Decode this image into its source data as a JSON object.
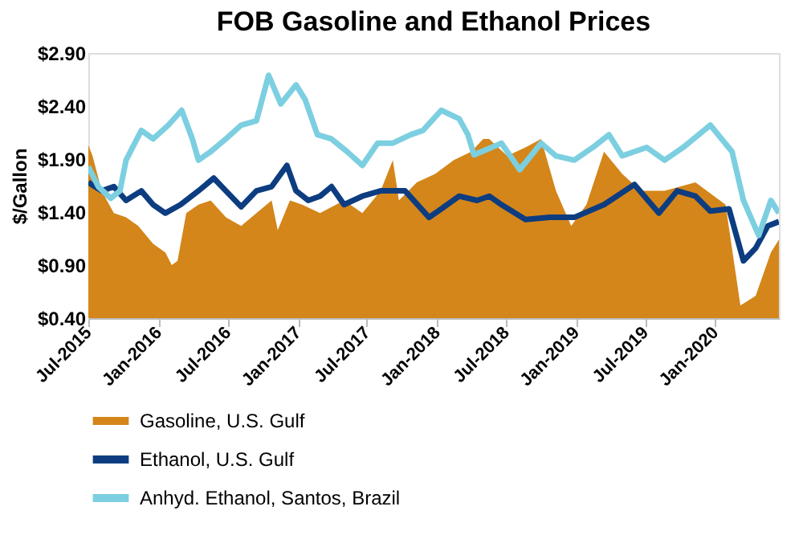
{
  "chart_data": {
    "type": "line",
    "title": "FOB Gasoline and Ethanol Prices",
    "ylabel": "$/Gallon",
    "ylim": [
      0.4,
      2.9
    ],
    "yticks": [
      {
        "value": 0.4,
        "label": "$0.40"
      },
      {
        "value": 0.9,
        "label": "$0.90"
      },
      {
        "value": 1.4,
        "label": "$1.40"
      },
      {
        "value": 1.9,
        "label": "$1.90"
      },
      {
        "value": 2.4,
        "label": "$2.40"
      },
      {
        "value": 2.9,
        "label": "$2.90"
      }
    ],
    "xlim": [
      "2015-07-01",
      "2020-06-16"
    ],
    "xticks": [
      {
        "value": "2015-07-01",
        "label": "Jul-2015"
      },
      {
        "value": "2016-01-01",
        "label": "Jan-2016"
      },
      {
        "value": "2016-07-01",
        "label": "Jul-2016"
      },
      {
        "value": "2017-01-01",
        "label": "Jan-2017"
      },
      {
        "value": "2017-07-01",
        "label": "Jul-2017"
      },
      {
        "value": "2018-01-01",
        "label": "Jan-2018"
      },
      {
        "value": "2018-07-01",
        "label": "Jul-2018"
      },
      {
        "value": "2019-01-01",
        "label": "Jan-2019"
      },
      {
        "value": "2019-07-01",
        "label": "Jul-2019"
      },
      {
        "value": "2020-01-01",
        "label": "Jan-2020"
      }
    ],
    "grid": false,
    "legend": "bottom",
    "marker": "none",
    "line_style": "solid",
    "series": [
      {
        "name": "Gasoline, U.S. Gulf",
        "type": "area",
        "color": "#d4861a",
        "x": [
          "2015-07-01",
          "2015-07-12",
          "2015-08-05",
          "2015-09-06",
          "2015-10-08",
          "2015-11-09",
          "2015-12-18",
          "2016-01-19",
          "2016-02-05",
          "2016-02-20",
          "2016-03-14",
          "2016-04-15",
          "2016-05-17",
          "2016-06-26",
          "2016-08-05",
          "2016-09-14",
          "2016-10-24",
          "2016-11-09",
          "2016-12-11",
          "2017-01-12",
          "2017-02-28",
          "2017-05-02",
          "2017-06-19",
          "2017-08-06",
          "2017-09-07",
          "2017-09-23",
          "2017-11-09",
          "2017-12-27",
          "2018-02-14",
          "2018-04-01",
          "2018-05-02",
          "2018-05-18",
          "2018-07-04",
          "2018-08-21",
          "2018-10-01",
          "2018-11-09",
          "2018-12-19",
          "2019-01-28",
          "2019-03-15",
          "2019-05-02",
          "2019-06-19",
          "2019-08-21",
          "2019-11-10",
          "2020-01-28",
          "2020-03-07",
          "2020-04-16",
          "2020-05-26",
          "2020-06-16"
        ],
        "values": [
          2.03,
          1.93,
          1.6,
          1.39,
          1.35,
          1.27,
          1.1,
          1.02,
          0.9,
          0.94,
          1.39,
          1.47,
          1.51,
          1.35,
          1.27,
          1.39,
          1.51,
          1.23,
          1.51,
          1.47,
          1.39,
          1.51,
          1.39,
          1.6,
          1.89,
          1.51,
          1.68,
          1.76,
          1.89,
          1.97,
          2.09,
          2.09,
          1.93,
          2.01,
          2.09,
          1.6,
          1.27,
          1.47,
          1.97,
          1.76,
          1.6,
          1.6,
          1.68,
          1.47,
          0.52,
          0.61,
          1.02,
          1.14
        ]
      },
      {
        "name": "Ethanol, U.S. Gulf",
        "color": "#0d3d80",
        "x": [
          "2015-07-01",
          "2015-08-05",
          "2015-09-06",
          "2015-10-08",
          "2015-11-17",
          "2015-12-18",
          "2016-01-19",
          "2016-02-28",
          "2016-04-15",
          "2016-05-25",
          "2016-06-26",
          "2016-08-05",
          "2016-09-14",
          "2016-10-24",
          "2016-12-03",
          "2016-12-27",
          "2017-01-28",
          "2017-02-28",
          "2017-03-30",
          "2017-05-02",
          "2017-06-19",
          "2017-08-06",
          "2017-10-09",
          "2017-12-11",
          "2018-01-12",
          "2018-02-28",
          "2018-04-16",
          "2018-05-18",
          "2018-06-19",
          "2018-08-21",
          "2018-10-24",
          "2018-12-27",
          "2019-03-15",
          "2019-06-03",
          "2019-08-06",
          "2019-09-23",
          "2019-11-10",
          "2019-12-19",
          "2020-02-06",
          "2020-03-15",
          "2020-04-16",
          "2020-05-18",
          "2020-06-16"
        ],
        "values": [
          1.68,
          1.6,
          1.64,
          1.51,
          1.6,
          1.47,
          1.39,
          1.47,
          1.6,
          1.72,
          1.6,
          1.45,
          1.6,
          1.64,
          1.84,
          1.6,
          1.51,
          1.55,
          1.64,
          1.47,
          1.55,
          1.6,
          1.6,
          1.35,
          1.43,
          1.55,
          1.51,
          1.55,
          1.47,
          1.33,
          1.35,
          1.35,
          1.47,
          1.66,
          1.39,
          1.6,
          1.55,
          1.41,
          1.43,
          0.94,
          1.06,
          1.27,
          1.31
        ]
      },
      {
        "name": "Anhyd. Ethanol, Santos, Brazil",
        "color": "#7ccfe0",
        "x": [
          "2015-07-01",
          "2015-07-27",
          "2015-08-29",
          "2015-09-22",
          "2015-10-08",
          "2015-11-17",
          "2015-12-18",
          "2016-01-27",
          "2016-03-02",
          "2016-03-30",
          "2016-04-15",
          "2016-05-17",
          "2016-06-26",
          "2016-08-05",
          "2016-09-14",
          "2016-10-16",
          "2016-11-17",
          "2016-12-27",
          "2017-01-20",
          "2017-02-21",
          "2017-03-30",
          "2017-05-10",
          "2017-06-19",
          "2017-07-29",
          "2017-09-07",
          "2017-10-24",
          "2017-11-25",
          "2018-01-12",
          "2018-02-28",
          "2018-03-23",
          "2018-04-08",
          "2018-05-18",
          "2018-06-19",
          "2018-08-06",
          "2018-10-01",
          "2018-11-09",
          "2018-12-27",
          "2019-02-14",
          "2019-03-28",
          "2019-05-02",
          "2019-07-05",
          "2019-08-21",
          "2019-10-09",
          "2019-12-19",
          "2020-02-14",
          "2020-03-15",
          "2020-04-24",
          "2020-05-26",
          "2020-06-16"
        ],
        "values": [
          1.83,
          1.64,
          1.53,
          1.6,
          1.89,
          2.17,
          2.09,
          2.22,
          2.36,
          2.09,
          1.89,
          1.97,
          2.09,
          2.22,
          2.26,
          2.69,
          2.42,
          2.6,
          2.46,
          2.13,
          2.09,
          1.97,
          1.84,
          2.05,
          2.05,
          2.13,
          2.17,
          2.36,
          2.28,
          2.13,
          1.94,
          2.0,
          2.05,
          1.8,
          2.05,
          1.93,
          1.89,
          2.01,
          2.13,
          1.93,
          2.01,
          1.89,
          2.01,
          2.22,
          1.97,
          1.51,
          1.18,
          1.51,
          1.39
        ]
      }
    ]
  }
}
